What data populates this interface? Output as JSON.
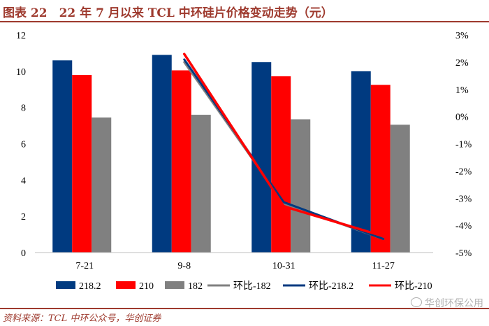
{
  "title": "图表 22　22 年 7 月以来 TCL 中环硅片价格变动走势（元）",
  "source": "资料来源：TCL 中环公众号，华创证券",
  "watermark": "华创环保公用",
  "colors": {
    "accent": "#9e3a2e",
    "s218": "#003a80",
    "s210": "#ff0000",
    "s182": "#808080"
  },
  "chart_data": {
    "type": "bar+line",
    "categories": [
      "7-21",
      "9-8",
      "10-31",
      "11-27"
    ],
    "left_axis": {
      "min": 0,
      "max": 12,
      "ticks": [
        "0",
        "2",
        "4",
        "6",
        "8",
        "10",
        "12"
      ]
    },
    "right_axis": {
      "min": -5,
      "max": 3,
      "ticks": [
        "-5%",
        "-4%",
        "-3%",
        "-2%",
        "-1%",
        "0%",
        "1%",
        "2%",
        "3%"
      ]
    },
    "bar_series": [
      {
        "name": "218.2",
        "color": "#003a80",
        "values": [
          10.6,
          10.9,
          10.5,
          10.0
        ]
      },
      {
        "name": "210",
        "color": "#ff0000",
        "values": [
          9.8,
          10.05,
          9.72,
          9.25
        ]
      },
      {
        "name": "182",
        "color": "#808080",
        "values": [
          7.45,
          7.6,
          7.35,
          7.05
        ]
      }
    ],
    "line_series": [
      {
        "name": "环比-182",
        "color": "#808080",
        "values": [
          null,
          2.0,
          -3.2,
          -4.5
        ]
      },
      {
        "name": "环比-218.2",
        "color": "#003a80",
        "values": [
          null,
          2.1,
          -3.15,
          -4.5
        ]
      },
      {
        "name": "环比-210",
        "color": "#ff0000",
        "values": [
          null,
          2.3,
          -3.3,
          -4.4
        ]
      }
    ]
  }
}
